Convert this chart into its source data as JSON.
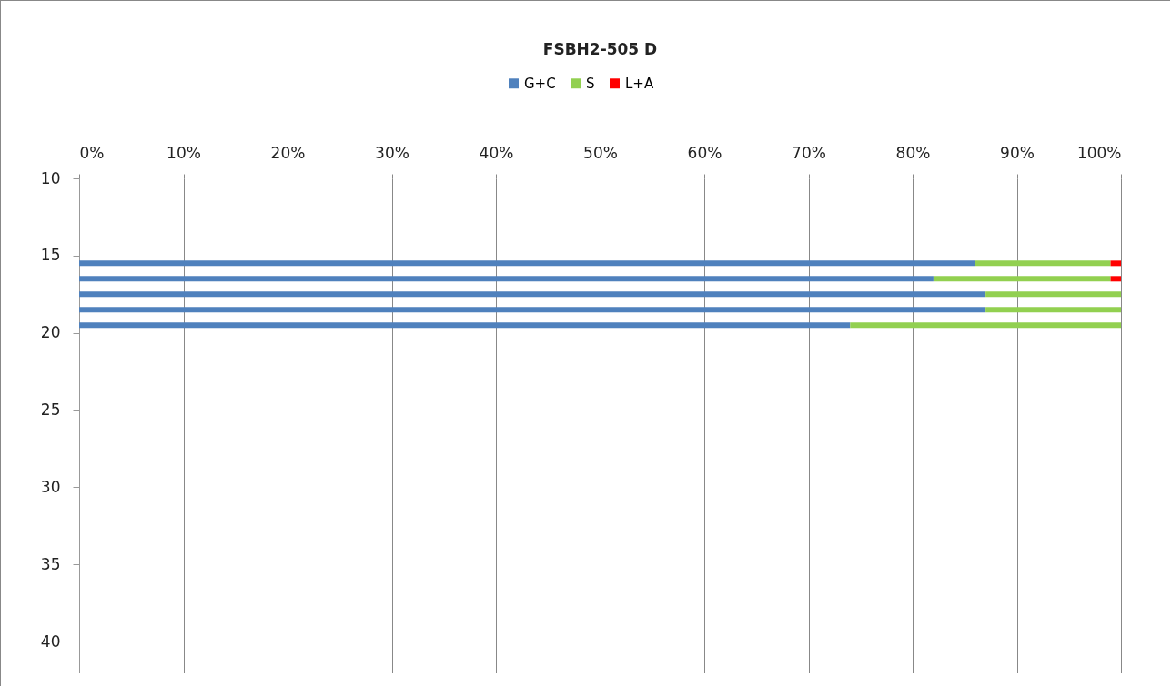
{
  "chart_data": {
    "type": "bar",
    "title": "FSBH2-505 D",
    "orientation": "horizontal",
    "stacked": true,
    "x": [
      15.5,
      16.5,
      17.5,
      18.5,
      19.5
    ],
    "series": [
      {
        "name": "G+C",
        "color": "#4f81bd",
        "values": [
          86,
          82,
          87,
          87,
          74
        ]
      },
      {
        "name": "S",
        "color": "#92d050",
        "values": [
          13,
          17,
          13,
          13,
          26
        ]
      },
      {
        "name": "L+A",
        "color": "#ff0000",
        "values": [
          1,
          1,
          0,
          0,
          0
        ]
      }
    ],
    "xlim": [
      0,
      100
    ],
    "xticks": [
      {
        "value": 0,
        "label": "0%"
      },
      {
        "value": 10,
        "label": "10%"
      },
      {
        "value": 20,
        "label": "20%"
      },
      {
        "value": 30,
        "label": "30%"
      },
      {
        "value": 40,
        "label": "40%"
      },
      {
        "value": 50,
        "label": "50%"
      },
      {
        "value": 60,
        "label": "60%"
      },
      {
        "value": 70,
        "label": "70%"
      },
      {
        "value": 80,
        "label": "80%"
      },
      {
        "value": 90,
        "label": "90%"
      },
      {
        "value": 100,
        "label": "100%"
      }
    ],
    "ylim": [
      42,
      10
    ],
    "yticks": [
      10,
      15,
      20,
      25,
      30,
      35,
      40
    ],
    "grid": "x",
    "legend": "top"
  }
}
